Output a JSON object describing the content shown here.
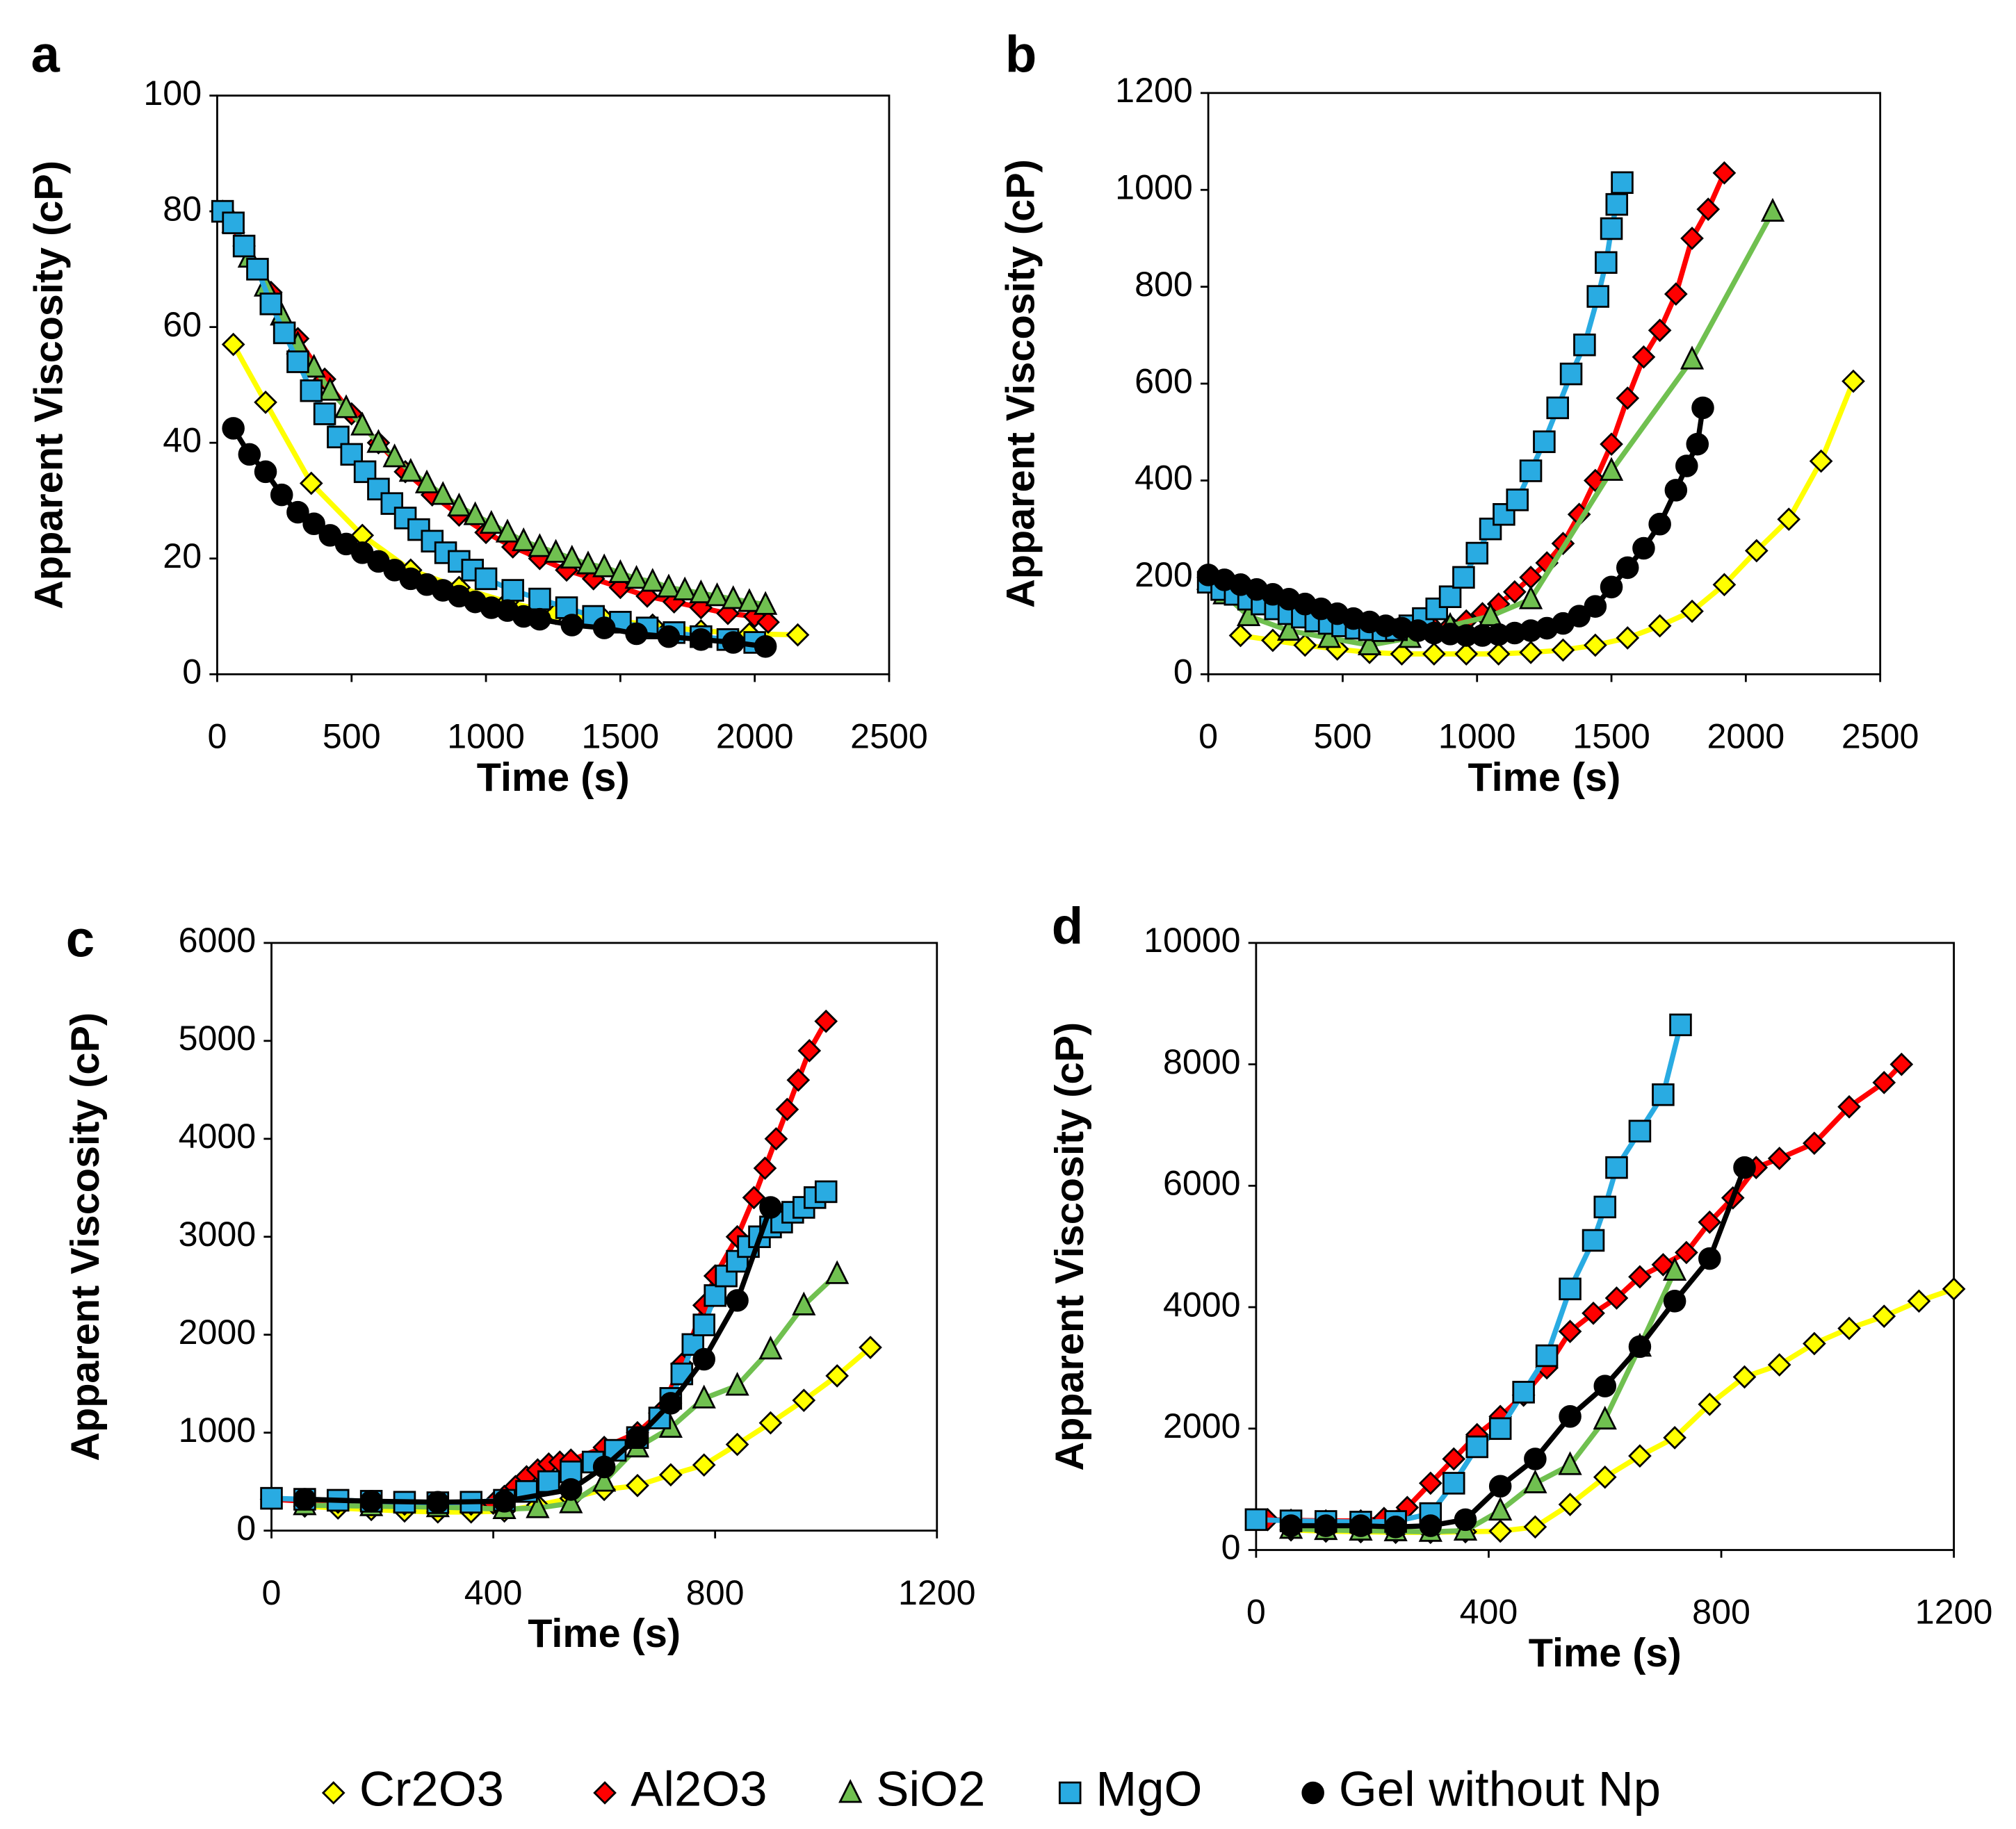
{
  "legend": [
    {
      "name": "Cr2O3",
      "color": "#ffff00",
      "marker": "diamond"
    },
    {
      "name": "Al2O3",
      "color": "#ff0000",
      "marker": "diamond"
    },
    {
      "name": "SiO2",
      "color": "#70c050",
      "marker": "triangle"
    },
    {
      "name": "MgO",
      "color": "#29abe2",
      "marker": "square"
    },
    {
      "name": "Gel without Np",
      "color": "#000000",
      "marker": "circle"
    }
  ],
  "chart_data": [
    {
      "type": "line",
      "title": "a",
      "x_label": "Time (s)",
      "y_label": "Apparent Viscosity (cP)",
      "xlim": [
        0,
        2500
      ],
      "ylim": [
        0,
        100
      ],
      "xticks": [
        0,
        500,
        1000,
        1500,
        2000,
        2500
      ],
      "yticks": [
        0,
        20,
        40,
        60,
        80,
        100
      ],
      "series": [
        {
          "x": [
            60,
            180,
            350,
            540,
            720,
            900,
            1080,
            1260,
            1440,
            1620,
            1800,
            1980,
            2160
          ],
          "values": [
            57,
            47,
            33,
            24,
            18,
            15,
            12.5,
            10.5,
            9.5,
            8.5,
            7.5,
            7,
            6.8
          ]
        },
        {
          "x": [
            20,
            100,
            200,
            300,
            400,
            500,
            600,
            700,
            800,
            900,
            1000,
            1100,
            1200,
            1300,
            1400,
            1500,
            1600,
            1700,
            1800,
            1900,
            2000,
            2050
          ],
          "values": [
            80,
            74,
            66,
            58,
            51,
            45,
            40,
            35,
            31,
            27.5,
            24.5,
            22,
            20,
            18,
            16.5,
            15,
            13.5,
            12.5,
            11.5,
            10.5,
            10,
            9
          ]
        },
        {
          "x": [
            60,
            120,
            180,
            240,
            300,
            360,
            420,
            480,
            540,
            600,
            660,
            720,
            780,
            840,
            900,
            960,
            1020,
            1080,
            1140,
            1200,
            1260,
            1320,
            1380,
            1440,
            1500,
            1560,
            1620,
            1680,
            1740,
            1800,
            1860,
            1920,
            1980,
            2040
          ],
          "values": [
            78,
            72,
            67,
            62,
            57,
            53,
            49,
            46,
            43,
            40,
            37.5,
            35,
            33,
            31,
            29,
            27.5,
            26,
            24.5,
            23,
            22,
            21,
            20,
            19,
            18.5,
            17.5,
            16.5,
            16,
            15,
            14.5,
            14,
            13.5,
            13,
            12.5,
            12
          ]
        },
        {
          "x": [
            20,
            60,
            100,
            150,
            200,
            250,
            300,
            350,
            400,
            450,
            500,
            550,
            600,
            650,
            700,
            750,
            800,
            850,
            900,
            950,
            1000,
            1100,
            1200,
            1300,
            1400,
            1500,
            1600,
            1700,
            1800,
            1900,
            2000
          ],
          "values": [
            80,
            78,
            74,
            70,
            64,
            59,
            54,
            49,
            45,
            41,
            38,
            35,
            32,
            29.5,
            27,
            25,
            23,
            21,
            19.5,
            18,
            16.5,
            14.5,
            13,
            11.5,
            10,
            9,
            8,
            7.2,
            6.5,
            6,
            5.5
          ]
        },
        {
          "x": [
            60,
            120,
            180,
            240,
            300,
            360,
            420,
            480,
            540,
            600,
            660,
            720,
            780,
            840,
            900,
            960,
            1020,
            1080,
            1140,
            1200,
            1320,
            1440,
            1560,
            1680,
            1800,
            1920,
            2040
          ],
          "values": [
            42.5,
            38,
            35,
            31,
            28,
            26,
            24,
            22.5,
            21,
            19.5,
            18,
            16.5,
            15.5,
            14.5,
            13.5,
            12.5,
            11.5,
            11,
            10,
            9.5,
            8.5,
            8,
            7,
            6.5,
            6,
            5.5,
            4.8
          ]
        }
      ]
    },
    {
      "type": "line",
      "title": "b",
      "x_label": "Time (s)",
      "y_label": "Apparent Viscosity (cP)",
      "xlim": [
        0,
        2500
      ],
      "ylim": [
        0,
        1200
      ],
      "xticks": [
        0,
        500,
        1000,
        1500,
        2000,
        2500
      ],
      "yticks": [
        0,
        200,
        400,
        600,
        800,
        1000,
        1200
      ],
      "series": [
        {
          "x": [
            120,
            240,
            360,
            480,
            600,
            720,
            840,
            960,
            1080,
            1200,
            1320,
            1440,
            1560,
            1680,
            1800,
            1920,
            2040,
            2160,
            2280,
            2400
          ],
          "values": [
            80,
            70,
            60,
            52,
            45,
            42,
            42,
            42,
            42,
            45,
            50,
            60,
            75,
            100,
            130,
            185,
            255,
            320,
            440,
            605
          ]
        },
        {
          "x": [
            0,
            60,
            120,
            180,
            240,
            300,
            360,
            420,
            480,
            540,
            600,
            660,
            720,
            780,
            840,
            900,
            960,
            1020,
            1080,
            1140,
            1200,
            1260,
            1320,
            1380,
            1440,
            1500,
            1560,
            1620,
            1680,
            1740,
            1800,
            1860,
            1920
          ],
          "values": [
            200,
            185,
            170,
            158,
            145,
            135,
            125,
            115,
            108,
            100,
            95,
            90,
            88,
            90,
            95,
            100,
            110,
            125,
            145,
            170,
            200,
            230,
            270,
            330,
            400,
            475,
            570,
            655,
            710,
            785,
            900,
            960,
            1035
          ]
        },
        {
          "x": [
            0,
            60,
            150,
            300,
            450,
            600,
            750,
            900,
            1050,
            1200,
            1500,
            1800,
            2100
          ],
          "values": [
            195,
            165,
            120,
            90,
            75,
            60,
            75,
            100,
            120,
            155,
            420,
            650,
            955
          ]
        },
        {
          "x": [
            0,
            50,
            100,
            150,
            200,
            250,
            300,
            350,
            400,
            450,
            500,
            550,
            600,
            650,
            700,
            750,
            800,
            850,
            900,
            950,
            1000,
            1050,
            1100,
            1150,
            1200,
            1250,
            1300,
            1350,
            1400,
            1450,
            1480,
            1500,
            1520,
            1540
          ],
          "values": [
            190,
            175,
            165,
            155,
            145,
            135,
            125,
            118,
            110,
            105,
            100,
            95,
            92,
            90,
            92,
            100,
            115,
            135,
            160,
            200,
            250,
            300,
            330,
            360,
            420,
            480,
            550,
            620,
            680,
            780,
            850,
            920,
            970,
            1015
          ]
        },
        {
          "x": [
            0,
            60,
            120,
            180,
            240,
            300,
            360,
            420,
            480,
            540,
            600,
            660,
            720,
            780,
            840,
            900,
            960,
            1020,
            1080,
            1140,
            1200,
            1260,
            1320,
            1380,
            1440,
            1500,
            1560,
            1620,
            1680,
            1740,
            1780,
            1820,
            1840
          ],
          "values": [
            205,
            195,
            185,
            175,
            165,
            155,
            145,
            135,
            125,
            115,
            108,
            100,
            95,
            90,
            85,
            83,
            80,
            80,
            82,
            85,
            90,
            95,
            105,
            120,
            140,
            180,
            220,
            260,
            310,
            380,
            430,
            475,
            550
          ]
        }
      ]
    },
    {
      "type": "line",
      "title": "c",
      "x_label": "Time (s)",
      "y_label": "Apparent Viscosity (cP)",
      "xlim": [
        0,
        1200
      ],
      "ylim": [
        0,
        6000
      ],
      "xticks": [
        0,
        400,
        800,
        1200
      ],
      "yticks": [
        0,
        1000,
        2000,
        3000,
        4000,
        5000,
        6000
      ],
      "series": [
        {
          "x": [
            60,
            120,
            180,
            240,
            300,
            360,
            420,
            480,
            540,
            600,
            660,
            720,
            780,
            840,
            900,
            960,
            1020,
            1080
          ],
          "values": [
            250,
            230,
            215,
            200,
            190,
            190,
            200,
            260,
            330,
            420,
            460,
            570,
            670,
            880,
            1100,
            1330,
            1580,
            1870
          ]
        },
        {
          "x": [
            0,
            60,
            120,
            180,
            240,
            300,
            360,
            400,
            420,
            440,
            460,
            480,
            500,
            520,
            540,
            600,
            660,
            700,
            740,
            780,
            800,
            840,
            870,
            890,
            910,
            930,
            950,
            970,
            1000
          ],
          "values": [
            320,
            300,
            290,
            280,
            270,
            265,
            270,
            280,
            350,
            450,
            550,
            620,
            680,
            700,
            720,
            850,
            1000,
            1200,
            1700,
            2300,
            2600,
            3000,
            3400,
            3700,
            4000,
            4300,
            4600,
            4900,
            5200
          ]
        },
        {
          "x": [
            60,
            180,
            300,
            420,
            480,
            540,
            600,
            660,
            720,
            780,
            840,
            900,
            960,
            1020
          ],
          "values": [
            260,
            250,
            240,
            220,
            230,
            280,
            500,
            850,
            1050,
            1350,
            1480,
            1850,
            2300,
            2620
          ]
        },
        {
          "x": [
            0,
            60,
            120,
            180,
            240,
            300,
            360,
            420,
            460,
            500,
            540,
            580,
            620,
            660,
            700,
            720,
            740,
            760,
            780,
            800,
            820,
            840,
            860,
            880,
            900,
            920,
            940,
            960,
            980,
            1000
          ],
          "values": [
            330,
            320,
            310,
            300,
            290,
            285,
            290,
            310,
            400,
            500,
            600,
            700,
            820,
            950,
            1150,
            1350,
            1600,
            1900,
            2100,
            2400,
            2600,
            2750,
            2900,
            3000,
            3100,
            3150,
            3250,
            3300,
            3400,
            3460
          ]
        },
        {
          "x": [
            60,
            180,
            300,
            420,
            540,
            600,
            660,
            720,
            780,
            840,
            900
          ],
          "values": [
            320,
            300,
            290,
            300,
            420,
            650,
            950,
            1300,
            1750,
            2350,
            3300
          ]
        }
      ]
    },
    {
      "type": "line",
      "title": "d",
      "x_label": "Time (s)",
      "y_label": "Apparent Viscosity (cP)",
      "xlim": [
        0,
        1200
      ],
      "ylim": [
        0,
        10000
      ],
      "xticks": [
        0,
        400,
        800,
        1200
      ],
      "yticks": [
        0,
        2000,
        4000,
        6000,
        8000,
        10000
      ],
      "series": [
        {
          "x": [
            60,
            120,
            180,
            240,
            300,
            360,
            420,
            480,
            540,
            600,
            660,
            720,
            780,
            840,
            900,
            960,
            1020,
            1080,
            1140,
            1200
          ],
          "values": [
            330,
            310,
            300,
            290,
            290,
            300,
            310,
            380,
            750,
            1200,
            1550,
            1850,
            2400,
            2850,
            3050,
            3400,
            3650,
            3850,
            4100,
            4300
          ]
        },
        {
          "x": [
            20,
            60,
            120,
            180,
            220,
            260,
            300,
            340,
            380,
            420,
            460,
            500,
            540,
            580,
            620,
            660,
            700,
            740,
            780,
            820,
            860,
            900,
            960,
            1020,
            1080,
            1110
          ],
          "values": [
            500,
            490,
            480,
            480,
            520,
            700,
            1100,
            1500,
            1900,
            2200,
            2550,
            3000,
            3600,
            3900,
            4150,
            4500,
            4700,
            4900,
            5400,
            5800,
            6300,
            6450,
            6700,
            7300,
            7700,
            8000
          ]
        },
        {
          "x": [
            60,
            120,
            180,
            240,
            300,
            360,
            420,
            480,
            540,
            600,
            660,
            720
          ],
          "values": [
            350,
            330,
            320,
            310,
            300,
            320,
            650,
            1100,
            1400,
            2150,
            3350,
            4600
          ]
        },
        {
          "x": [
            0,
            60,
            120,
            180,
            240,
            300,
            340,
            380,
            420,
            460,
            500,
            540,
            580,
            600,
            620,
            660,
            700,
            730
          ],
          "values": [
            500,
            480,
            470,
            460,
            470,
            600,
            1100,
            1700,
            2000,
            2600,
            3200,
            4300,
            5100,
            5650,
            6300,
            6900,
            7500,
            8650
          ]
        },
        {
          "x": [
            60,
            120,
            180,
            240,
            300,
            360,
            420,
            480,
            540,
            600,
            660,
            720,
            780,
            840
          ],
          "values": [
            400,
            400,
            400,
            380,
            400,
            500,
            1050,
            1500,
            2200,
            2700,
            3350,
            4100,
            4800,
            6300
          ]
        }
      ]
    }
  ]
}
